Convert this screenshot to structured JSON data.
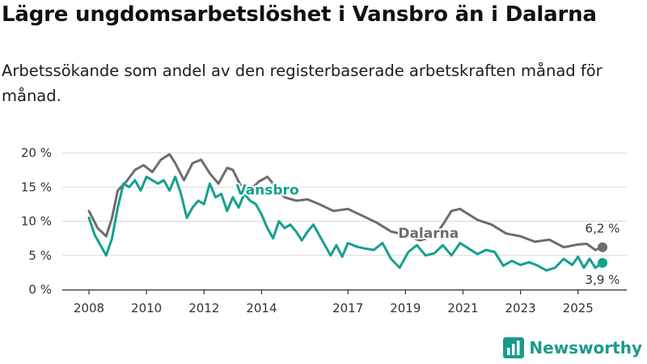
{
  "title": "Lägre ungdomsarbetslöshet i Vansbro än i Dalarna",
  "subtitle": "Arbetssökande som andel av den registerbaserade arbetskraften månad för månad.",
  "brand": {
    "name": "Newsworthy",
    "logo_icon": "newsworthy-logo-icon"
  },
  "colors": {
    "vansbro": "#14a08f",
    "dalarna": "#6d6d6d",
    "grid": "#d9d9d9",
    "axis": "#333333"
  },
  "chart_data": {
    "type": "line",
    "title": "Lägre ungdomsarbetslöshet i Vansbro än i Dalarna",
    "ylabel": "",
    "xlabel": "",
    "ylim": [
      0,
      20
    ],
    "xlim": [
      2008.0,
      2025.85
    ],
    "y_ticks": [
      0,
      5,
      10,
      15,
      20
    ],
    "y_tick_labels": [
      "0 %",
      "5 %",
      "10 %",
      "15 %",
      "20 %"
    ],
    "x_ticks": [
      2008,
      2010,
      2012,
      2014,
      2017,
      2019,
      2021,
      2023,
      2025
    ],
    "x_tick_labels": [
      "2008",
      "2010",
      "2012",
      "2014",
      "2017",
      "2019",
      "2021",
      "2023",
      "2025"
    ],
    "series": [
      {
        "name": "Dalarna",
        "label": "Dalarna",
        "end_label": "6,2 %",
        "x": [
          2008.0,
          2008.3,
          2008.6,
          2008.8,
          2009.0,
          2009.3,
          2009.6,
          2009.9,
          2010.2,
          2010.5,
          2010.8,
          2011.0,
          2011.3,
          2011.6,
          2011.9,
          2012.2,
          2012.5,
          2012.8,
          2013.0,
          2013.3,
          2013.6,
          2013.9,
          2014.2,
          2014.5,
          2014.8,
          2015.2,
          2015.6,
          2016.0,
          2016.5,
          2017.0,
          2017.5,
          2018.0,
          2018.5,
          2019.0,
          2019.5,
          2020.0,
          2020.3,
          2020.6,
          2020.9,
          2021.2,
          2021.5,
          2022.0,
          2022.5,
          2023.0,
          2023.5,
          2024.0,
          2024.5,
          2025.0,
          2025.3,
          2025.6,
          2025.85
        ],
        "values": [
          11.5,
          9.0,
          7.8,
          10.5,
          14.5,
          15.8,
          17.5,
          18.2,
          17.2,
          19.0,
          19.8,
          18.5,
          16.0,
          18.5,
          19.0,
          17.0,
          15.5,
          17.8,
          17.5,
          15.0,
          14.5,
          15.8,
          16.5,
          15.0,
          13.5,
          13.0,
          13.2,
          12.5,
          11.5,
          11.8,
          10.8,
          9.8,
          8.5,
          8.0,
          7.2,
          7.8,
          9.5,
          11.5,
          11.8,
          11.0,
          10.2,
          9.5,
          8.2,
          7.8,
          7.0,
          7.3,
          6.2,
          6.6,
          6.7,
          5.8,
          6.2
        ]
      },
      {
        "name": "Vansbro",
        "label": "Vansbro",
        "end_label": "3,9 %",
        "x": [
          2008.0,
          2008.2,
          2008.4,
          2008.6,
          2008.8,
          2009.0,
          2009.2,
          2009.4,
          2009.6,
          2009.8,
          2010.0,
          2010.2,
          2010.4,
          2010.6,
          2010.8,
          2011.0,
          2011.2,
          2011.4,
          2011.6,
          2011.8,
          2012.0,
          2012.2,
          2012.4,
          2012.6,
          2012.8,
          2013.0,
          2013.2,
          2013.4,
          2013.6,
          2013.8,
          2014.0,
          2014.2,
          2014.4,
          2014.6,
          2014.8,
          2015.0,
          2015.2,
          2015.4,
          2015.6,
          2015.8,
          2016.0,
          2016.2,
          2016.4,
          2016.6,
          2016.8,
          2017.0,
          2017.3,
          2017.6,
          2017.9,
          2018.2,
          2018.5,
          2018.8,
          2019.1,
          2019.4,
          2019.7,
          2020.0,
          2020.3,
          2020.6,
          2020.9,
          2021.2,
          2021.5,
          2021.8,
          2022.1,
          2022.4,
          2022.7,
          2023.0,
          2023.3,
          2023.6,
          2023.9,
          2024.2,
          2024.5,
          2024.8,
          2025.0,
          2025.2,
          2025.4,
          2025.6,
          2025.85
        ],
        "values": [
          10.5,
          8.0,
          6.5,
          5.0,
          7.5,
          12.0,
          15.5,
          15.0,
          16.0,
          14.5,
          16.5,
          16.0,
          15.5,
          16.0,
          14.5,
          16.5,
          14.0,
          10.5,
          12.0,
          13.0,
          12.5,
          15.5,
          13.5,
          14.0,
          11.5,
          13.5,
          12.0,
          14.0,
          13.0,
          12.5,
          11.0,
          9.0,
          7.5,
          10.0,
          9.0,
          9.5,
          8.5,
          7.2,
          8.5,
          9.5,
          8.0,
          6.5,
          5.0,
          6.5,
          4.8,
          6.8,
          6.3,
          6.0,
          5.8,
          6.8,
          4.5,
          3.2,
          5.5,
          6.5,
          5.0,
          5.3,
          6.5,
          5.0,
          6.8,
          6.0,
          5.2,
          5.8,
          5.5,
          3.5,
          4.2,
          3.6,
          4.0,
          3.5,
          2.8,
          3.2,
          4.5,
          3.6,
          4.8,
          3.2,
          4.5,
          3.2,
          3.9
        ]
      }
    ]
  }
}
